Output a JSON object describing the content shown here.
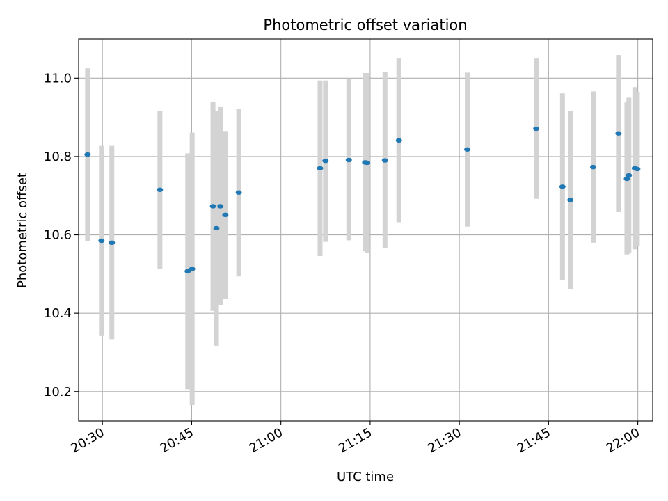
{
  "chart_data": {
    "type": "scatter",
    "title": "Photometric offset variation",
    "xlabel": "UTC time",
    "ylabel": "Photometric offset",
    "x_tick_labels": [
      "20:30",
      "20:45",
      "21:00",
      "21:15",
      "21:30",
      "21:45",
      "22:00"
    ],
    "x_ticks": [
      "20:30",
      "20:45",
      "21:00",
      "21:15",
      "21:30",
      "21:45",
      "22:00"
    ],
    "y_tick_labels": [
      "10.2",
      "10.4",
      "10.6",
      "10.8",
      "11.0"
    ],
    "y_ticks": [
      10.2,
      10.4,
      10.6,
      10.8,
      11.0
    ],
    "xlim": [
      "20:26",
      "22:02:30"
    ],
    "ylim": [
      10.125,
      11.1
    ],
    "grid": true,
    "legend": "none",
    "colors": {
      "marker": "#1f77b4",
      "errorbar": "#d3d3d3",
      "grid": "#b0b0b0"
    },
    "points": [
      {
        "x": "20:27:30",
        "y": 10.805,
        "ylow": 10.585,
        "yhigh": 11.025
      },
      {
        "x": "20:29:50",
        "y": 10.585,
        "ylow": 10.342,
        "yhigh": 10.827
      },
      {
        "x": "20:31:35",
        "y": 10.58,
        "ylow": 10.334,
        "yhigh": 10.827
      },
      {
        "x": "20:39:40",
        "y": 10.715,
        "ylow": 10.513,
        "yhigh": 10.916
      },
      {
        "x": "20:44:20",
        "y": 10.507,
        "ylow": 10.206,
        "yhigh": 10.808
      },
      {
        "x": "20:45:05",
        "y": 10.513,
        "ylow": 10.166,
        "yhigh": 10.861
      },
      {
        "x": "20:48:35",
        "y": 10.673,
        "ylow": 10.406,
        "yhigh": 10.94
      },
      {
        "x": "20:49:10",
        "y": 10.617,
        "ylow": 10.317,
        "yhigh": 10.916
      },
      {
        "x": "20:49:50",
        "y": 10.673,
        "ylow": 10.42,
        "yhigh": 10.926
      },
      {
        "x": "20:50:40",
        "y": 10.651,
        "ylow": 10.436,
        "yhigh": 10.865
      },
      {
        "x": "20:52:55",
        "y": 10.708,
        "ylow": 10.494,
        "yhigh": 10.921
      },
      {
        "x": "21:06:35",
        "y": 10.77,
        "ylow": 10.546,
        "yhigh": 10.994
      },
      {
        "x": "21:07:30",
        "y": 10.789,
        "ylow": 10.582,
        "yhigh": 10.994
      },
      {
        "x": "21:11:25",
        "y": 10.791,
        "ylow": 10.586,
        "yhigh": 10.997
      },
      {
        "x": "21:14:10",
        "y": 10.785,
        "ylow": 10.558,
        "yhigh": 11.013
      },
      {
        "x": "21:14:30",
        "y": 10.784,
        "ylow": 10.554,
        "yhigh": 11.013
      },
      {
        "x": "21:17:30",
        "y": 10.79,
        "ylow": 10.566,
        "yhigh": 11.015
      },
      {
        "x": "21:19:50",
        "y": 10.841,
        "ylow": 10.632,
        "yhigh": 11.05
      },
      {
        "x": "21:31:20",
        "y": 10.818,
        "ylow": 10.621,
        "yhigh": 11.014
      },
      {
        "x": "21:42:55",
        "y": 10.871,
        "ylow": 10.692,
        "yhigh": 11.05
      },
      {
        "x": "21:47:20",
        "y": 10.723,
        "ylow": 10.484,
        "yhigh": 10.961
      },
      {
        "x": "21:48:40",
        "y": 10.689,
        "ylow": 10.462,
        "yhigh": 10.916
      },
      {
        "x": "21:52:30",
        "y": 10.773,
        "ylow": 10.58,
        "yhigh": 10.966
      },
      {
        "x": "21:56:45",
        "y": 10.859,
        "ylow": 10.659,
        "yhigh": 11.059
      },
      {
        "x": "21:58:10",
        "y": 10.743,
        "ylow": 10.55,
        "yhigh": 10.938
      },
      {
        "x": "21:58:30",
        "y": 10.752,
        "ylow": 10.555,
        "yhigh": 10.95
      },
      {
        "x": "21:59:30",
        "y": 10.77,
        "ylow": 10.563,
        "yhigh": 10.977
      },
      {
        "x": "21:59:55",
        "y": 10.768,
        "ylow": 10.571,
        "yhigh": 10.965
      }
    ]
  }
}
